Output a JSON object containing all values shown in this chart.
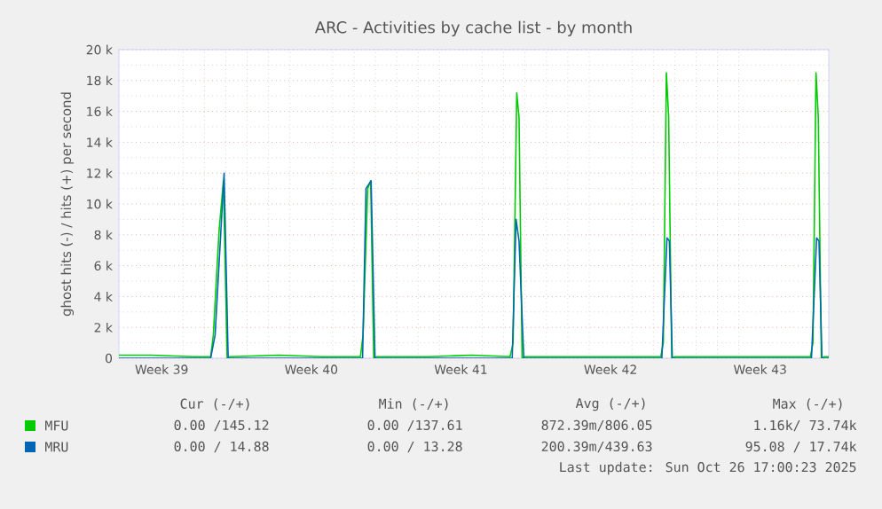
{
  "chart_data": {
    "type": "line",
    "title": "ARC - Activities by cache list - by month",
    "ylabel": "ghost hits (-) / hits (+) per second",
    "xlim": [
      "2025-09-23T12:00",
      "2025-10-26T17:00"
    ],
    "xticks": [
      {
        "value": "2025-09-25T12:00",
        "label": "Week 39"
      },
      {
        "value": "2025-10-02T12:00",
        "label": "Week 40"
      },
      {
        "value": "2025-10-09T12:00",
        "label": "Week 41"
      },
      {
        "value": "2025-10-16T12:00",
        "label": "Week 42"
      },
      {
        "value": "2025-10-23T12:00",
        "label": "Week 43"
      }
    ],
    "ylim": [
      0,
      20000
    ],
    "yticks": [
      0,
      {
        "value": 2000,
        "label": "2 k"
      },
      {
        "value": 4000,
        "label": "4 k"
      },
      {
        "value": 6000,
        "label": "6 k"
      },
      {
        "value": 8000,
        "label": "8 k"
      },
      {
        "value": 10000,
        "label": "10 k"
      },
      {
        "value": 12000,
        "label": "12 k"
      },
      {
        "value": 14000,
        "label": "14 k"
      },
      {
        "value": 16000,
        "label": "16 k"
      },
      {
        "value": 18000,
        "label": "18 k"
      },
      {
        "value": 20000,
        "label": "20 k"
      }
    ],
    "grid": true,
    "legend": "bottom",
    "series": [
      {
        "name": "MFU",
        "color": "#00cc00",
        "x": [
          "2025-09-23T12:00",
          "2025-09-25T00:00",
          "2025-09-27T00:00",
          "2025-09-27T19:00",
          "2025-09-27T22:00",
          "2025-09-28T04:30",
          "2025-09-28T09:20",
          "2025-09-28T13:30",
          "2025-09-28T16:50",
          "2025-10-01T00:00",
          "2025-10-03T00:00",
          "2025-10-04T19:10",
          "2025-10-04T22:05",
          "2025-10-05T03:20",
          "2025-10-05T06:40",
          "2025-10-05T10:05",
          "2025-10-05T13:10",
          "2025-10-08T00:00",
          "2025-10-10T00:00",
          "2025-10-11T19:10",
          "2025-10-11T22:35",
          "2025-10-12T02:40",
          "2025-10-12T05:15",
          "2025-10-12T08:40",
          "2025-10-12T12:00",
          "2025-10-15T00:00",
          "2025-10-17T00:00",
          "2025-10-18T20:25",
          "2025-10-18T23:15",
          "2025-10-19T02:40",
          "2025-10-19T05:15",
          "2025-10-19T08:40",
          "2025-10-19T12:00",
          "2025-10-22T00:00",
          "2025-10-24T00:00",
          "2025-10-25T20:25",
          "2025-10-25T23:15",
          "2025-10-26T02:40",
          "2025-10-26T05:15",
          "2025-10-26T08:40",
          "2025-10-26T12:00",
          "2025-10-26T17:00"
        ],
        "values": [
          200,
          200,
          100,
          100,
          1500,
          8300,
          11500,
          0,
          100,
          200,
          100,
          100,
          1500,
          11000,
          11500,
          0,
          100,
          100,
          200,
          100,
          1000,
          17200,
          15600,
          0,
          100,
          100,
          100,
          100,
          1000,
          18500,
          15600,
          0,
          100,
          100,
          100,
          100,
          1000,
          18500,
          15600,
          0,
          100,
          100
        ]
      },
      {
        "name": "MRU",
        "color": "#0066b3",
        "x": [
          "2025-09-23T12:00",
          "2025-09-27T19:00",
          "2025-09-28T00:00",
          "2025-09-28T10:05",
          "2025-09-28T14:40",
          "2025-09-28T16:50",
          "2025-10-04T21:35",
          "2025-10-05T01:25",
          "2025-10-05T07:10",
          "2025-10-05T11:30",
          "2025-10-05T14:25",
          "2025-10-11T21:35",
          "2025-10-12T01:55",
          "2025-10-12T05:15",
          "2025-10-12T10:35",
          "2025-10-12T13:10",
          "2025-10-18T21:35",
          "2025-10-19T03:20",
          "2025-10-19T06:00",
          "2025-10-19T09:20",
          "2025-10-19T12:00",
          "2025-10-25T21:35",
          "2025-10-26T03:20",
          "2025-10-26T06:00",
          "2025-10-26T09:20",
          "2025-10-26T12:00",
          "2025-10-26T17:00"
        ],
        "values": [
          0,
          0,
          1500,
          12000,
          0,
          0,
          0,
          11000,
          11500,
          0,
          0,
          0,
          9000,
          7600,
          0,
          0,
          0,
          7800,
          7600,
          0,
          0,
          0,
          7800,
          7600,
          0,
          0,
          0
        ]
      }
    ],
    "annotations": [
      "Cur (-/+)",
      "Min (-/+)",
      "Avg (-/+)",
      "Max (-/+)",
      "0.00 /145.12",
      "0.00 /137.61",
      "872.39m/806.05",
      "1.16k/ 73.74k",
      "0.00 / 14.88",
      "0.00 / 13.28",
      "200.39m/439.63",
      "95.08 / 17.74k",
      "Last update: Sun Oct 26 17:00:23 2025"
    ]
  }
}
